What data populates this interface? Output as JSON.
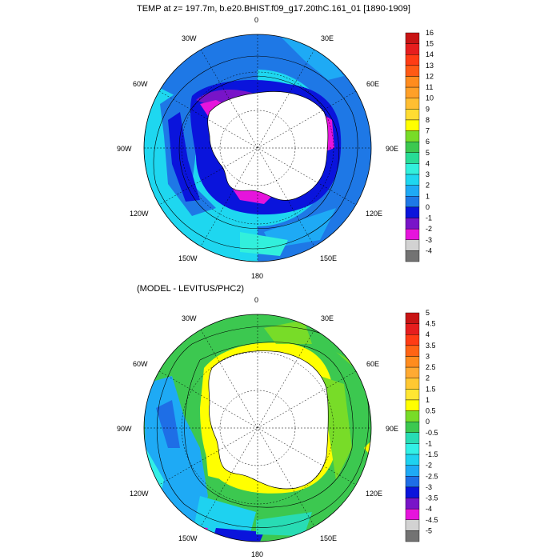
{
  "panels": [
    {
      "id": "top",
      "title": "TEMP at z= 197.7m, b.e20.BHIST.f09_g17.20thC.161_01 [1890-1909]",
      "lon_labels": [
        "0",
        "30E",
        "60E",
        "90E",
        "120E",
        "150E",
        "180",
        "150W",
        "120W",
        "90W",
        "60W",
        "30W"
      ],
      "colorbar": {
        "labels": [
          "16",
          "15",
          "14",
          "13",
          "12",
          "11",
          "10",
          "9",
          "8",
          "7",
          "6",
          "5",
          "4",
          "3",
          "2",
          "1",
          "0",
          "-1",
          "-2",
          "-3",
          "-4"
        ],
        "colors": [
          "#c81414",
          "#e61e1e",
          "#ff3c14",
          "#ff5a14",
          "#ff8c1e",
          "#ffa028",
          "#ffbe32",
          "#ffdc32",
          "#ffff00",
          "#78dc28",
          "#3cc850",
          "#28dc96",
          "#32f0dc",
          "#1ed7f0",
          "#1eaaf5",
          "#1e78e6",
          "#0a14dc",
          "#7814c8",
          "#e614dc",
          "#d2d2d2",
          "#737373"
        ]
      }
    },
    {
      "id": "bottom",
      "title": "(MODEL - LEVITUS/PHC2)",
      "lon_labels": [
        "0",
        "30E",
        "60E",
        "90E",
        "120E",
        "150E",
        "180",
        "150W",
        "120W",
        "90W",
        "60W",
        "30W"
      ],
      "colorbar": {
        "labels": [
          "5",
          "4.5",
          "4",
          "3.5",
          "3",
          "2.5",
          "2",
          "1.5",
          "1",
          "0.5",
          "0",
          "-0.5",
          "-1",
          "-1.5",
          "-2",
          "-2.5",
          "-3",
          "-3.5",
          "-4",
          "-4.5",
          "-5"
        ],
        "colors": [
          "#c81414",
          "#e61e1e",
          "#ff3c14",
          "#ff6414",
          "#ff8c1e",
          "#ffaa32",
          "#ffc832",
          "#ffe632",
          "#ffff00",
          "#78dc28",
          "#3cc850",
          "#28dcb4",
          "#32f0e6",
          "#1ed2f0",
          "#1eaaf5",
          "#1e6ee6",
          "#0a14dc",
          "#7814c8",
          "#e614dc",
          "#d2d2d2",
          "#737373"
        ]
      }
    }
  ]
}
